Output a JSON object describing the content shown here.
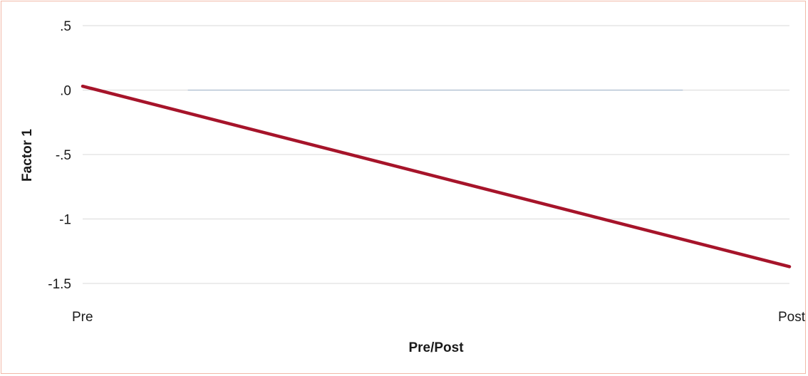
{
  "chart_data": {
    "type": "line",
    "title": "",
    "xlabel": "Pre/Post",
    "ylabel": "Factor 1",
    "categories": [
      "Pre",
      "Post"
    ],
    "series": [
      {
        "color": "#a6142a",
        "values": [
          0.03,
          -1.37
        ]
      },
      {
        "color": "#9aaec4",
        "values": [
          0.0,
          0.0
        ]
      }
    ],
    "ylim": [
      -1.5,
      0.5
    ],
    "yticks": [
      0.5,
      0.0,
      -0.5,
      -1,
      -1.5
    ],
    "ytick_labels": [
      ".5",
      ".0",
      "-.5",
      "-1",
      "-1.5"
    ],
    "grid": true,
    "gridline_color": "#d9d9d9",
    "legend": "none"
  }
}
